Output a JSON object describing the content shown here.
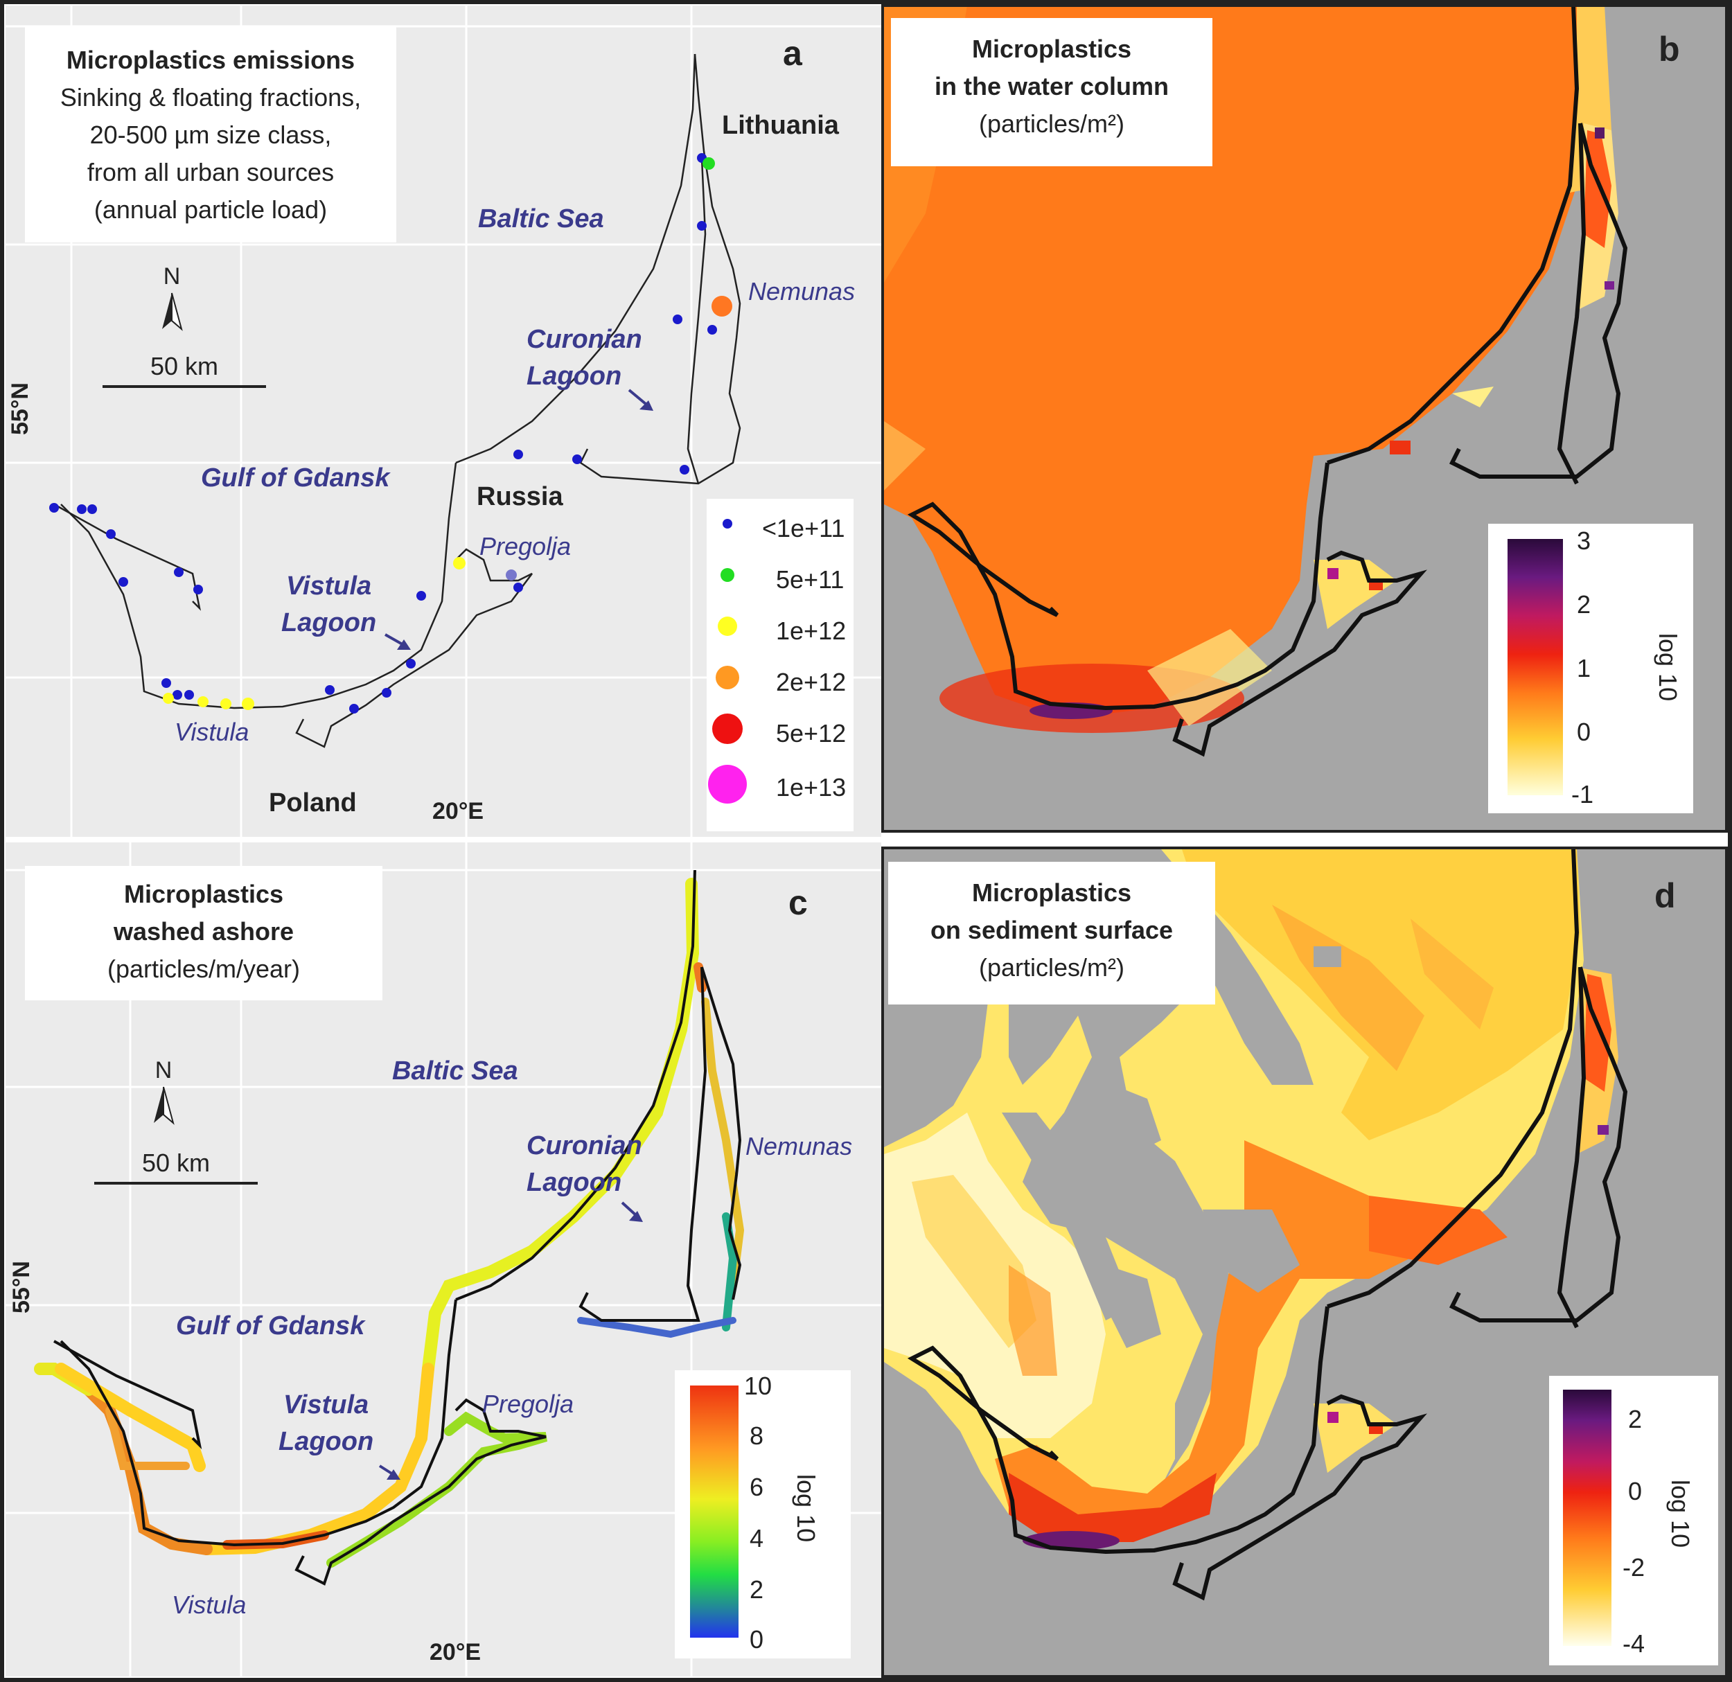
{
  "panels": {
    "a": {
      "letter": "a",
      "title": "Microplastics emissions",
      "subtitle_lines": [
        "Sinking & floating fractions,",
        "20-500 µm size class,",
        "from all urban sources",
        "(annual particle load)"
      ],
      "north": "N",
      "scale": "50 km",
      "lat_label": "55°N",
      "lon_label": "20°E",
      "places": {
        "lithuania": "Lithuania",
        "russia": "Russia",
        "poland": "Poland"
      },
      "waters": {
        "baltic": "Baltic Sea",
        "curonian": [
          "Curonian",
          "Lagoon"
        ],
        "gdansk": "Gulf of Gdansk",
        "vistula_lagoon": [
          "Vistula",
          "Lagoon"
        ]
      },
      "rivers": {
        "nemunas": "Nemunas",
        "pregolja": "Pregolja",
        "vistula": "Vistula"
      },
      "legend": [
        {
          "label": "<1e+11",
          "color": "#1a1acc"
        },
        {
          "label": "5e+11",
          "color": "#22dd22"
        },
        {
          "label": "1e+12",
          "color": "#ffff22"
        },
        {
          "label": "2e+12",
          "color": "#ff9922"
        },
        {
          "label": "5e+12",
          "color": "#ee1111"
        },
        {
          "label": "1e+13",
          "color": "#ff22ee"
        }
      ]
    },
    "b": {
      "letter": "b",
      "title_lines": [
        "Microplastics",
        "in the water column"
      ],
      "unit": "(particles/m²)",
      "colorbar": {
        "ticks": [
          "3",
          "2",
          "1",
          "0",
          "-1"
        ],
        "title": "log 10"
      }
    },
    "c": {
      "letter": "c",
      "title_lines": [
        "Microplastics",
        "washed ashore"
      ],
      "unit": "(particles/m/year)",
      "north": "N",
      "scale": "50 km",
      "lat_label": "55°N",
      "lon_label": "20°E",
      "waters": {
        "baltic": "Baltic Sea",
        "curonian": [
          "Curonian",
          "Lagoon"
        ],
        "gdansk": "Gulf of Gdansk",
        "vistula_lagoon": [
          "Vistula",
          "Lagoon"
        ]
      },
      "rivers": {
        "nemunas": "Nemunas",
        "pregolja": "Pregolja",
        "vistula": "Vistula"
      },
      "colorbar": {
        "ticks": [
          "10",
          "8",
          "6",
          "4",
          "2",
          "0"
        ],
        "title": "log 10"
      }
    },
    "d": {
      "letter": "d",
      "title_lines": [
        "Microplastics",
        "on sediment surface"
      ],
      "unit": "(particles/m²)",
      "colorbar": {
        "ticks": [
          "2",
          "0",
          "-2",
          "-4"
        ],
        "title": "log 10"
      }
    }
  },
  "colors": {
    "land_gray": "#a6a6a6",
    "map_bg": "#ebebeb",
    "label_blue": "#3a3a8c"
  }
}
